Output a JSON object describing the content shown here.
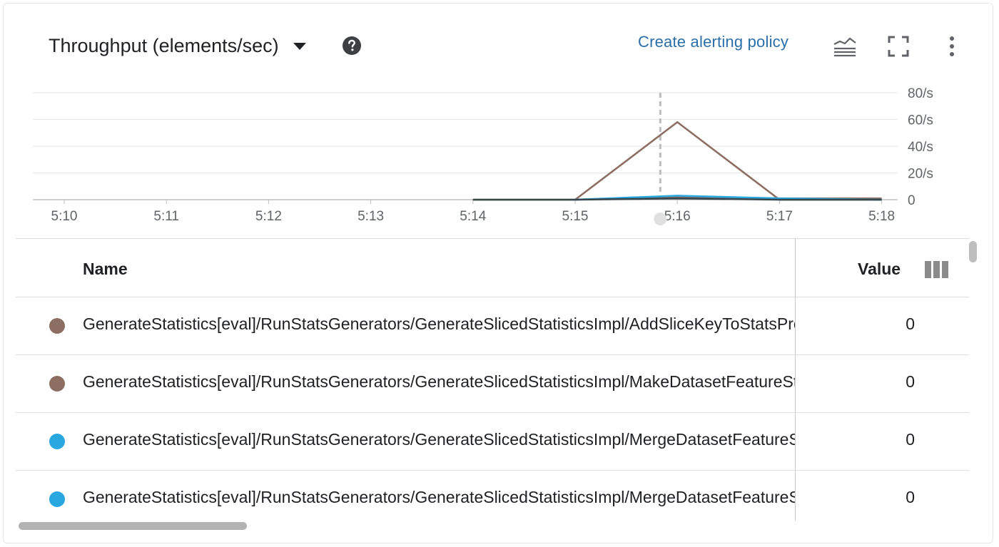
{
  "header": {
    "title": "Throughput (elements/sec)",
    "alert_link": "Create alerting policy"
  },
  "icons": {
    "dropdown": "caret-down-icon",
    "help": "help-circle-icon",
    "legend_toggle": "legend-icon",
    "fullscreen": "fullscreen-icon",
    "more": "more-vert-icon",
    "columns": "column-picker-icon"
  },
  "chart_data": {
    "type": "line",
    "x": [
      "5:10",
      "5:11",
      "5:12",
      "5:13",
      "5:14",
      "5:15",
      "5:16",
      "5:17",
      "5:18"
    ],
    "ylim": [
      0,
      80
    ],
    "yticks": [
      "80/s",
      "60/s",
      "40/s",
      "20/s",
      "0"
    ],
    "grid": true,
    "cursor_x": "5:15:50",
    "series": [
      {
        "color": "#8d6e63",
        "points": [
          [
            "5:14",
            0
          ],
          [
            "5:15",
            0
          ],
          [
            "5:16",
            58
          ],
          [
            "5:17",
            0
          ],
          [
            "5:18",
            0
          ]
        ]
      },
      {
        "color": "#8d6e63",
        "points": [
          [
            "5:15",
            0
          ],
          [
            "5:16",
            2
          ],
          [
            "5:17",
            1
          ],
          [
            "5:18",
            1
          ]
        ]
      },
      {
        "color": "#29a8e0",
        "points": [
          [
            "5:15",
            0
          ],
          [
            "5:16",
            3
          ],
          [
            "5:17",
            1
          ],
          [
            "5:18",
            0
          ]
        ]
      },
      {
        "color": "#37474f",
        "points": [
          [
            "5:14",
            0
          ],
          [
            "5:15",
            0
          ],
          [
            "5:16",
            1
          ],
          [
            "5:17",
            0
          ],
          [
            "5:18",
            0
          ]
        ]
      }
    ]
  },
  "table": {
    "columns": [
      "Name",
      "Value"
    ],
    "rows": [
      {
        "name": "GenerateStatistics[eval]/RunStatsGenerators/GenerateSlicedStatisticsImpl/AddSliceKeyToStatsProto",
        "value": "0",
        "color": "#8d6e63"
      },
      {
        "name": "GenerateStatistics[eval]/RunStatsGenerators/GenerateSlicedStatisticsImpl/MakeDatasetFeatureStatisticsListProto",
        "value": "0",
        "color": "#8d6e63"
      },
      {
        "name": "GenerateStatistics[eval]/RunStatsGenerators/GenerateSlicedStatisticsImpl/MergeDatasetFeatureStatisticsProtos",
        "value": "0",
        "color": "#29a8e0"
      },
      {
        "name": "GenerateStatistics[eval]/RunStatsGenerators/GenerateSlicedStatisticsImpl/MergeDatasetFeatureStatisticsProtos",
        "value": "0",
        "color": "#29a8e0"
      }
    ]
  }
}
